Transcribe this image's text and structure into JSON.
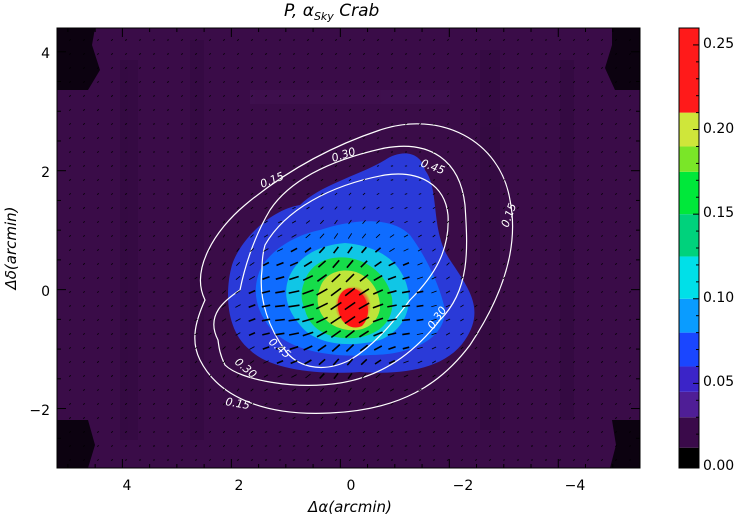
{
  "chart_data": {
    "type": "heatmap",
    "title": "P,  α",
    "title_sub": "Sky",
    "title_tail": " Crab",
    "xlabel": "Δα(arcmin)",
    "ylabel": "Δδ(arcmin)",
    "xlim": [
      5.2,
      -5.5
    ],
    "ylim": [
      -3.0,
      4.4
    ],
    "x_ticks": [
      "4",
      "2",
      "0",
      "−2",
      "−4"
    ],
    "y_ticks": [
      "−2",
      "0",
      "2",
      "4"
    ],
    "colorbar": {
      "range": [
        0.0,
        0.26
      ],
      "ticks": [
        "0.00",
        "0.05",
        "0.10",
        "0.15",
        "0.20",
        "0.25"
      ],
      "colors": [
        "#000000",
        "#3a0a4a",
        "#4f1e96",
        "#3b24c8",
        "#1a46ff",
        "#0a9cff",
        "#00e0e8",
        "#00d27c",
        "#00e83a",
        "#7ae628",
        "#cfe63a",
        "#ff1a1a"
      ]
    },
    "heatmap_peak": {
      "x": 0.1,
      "y": -0.3,
      "value": 0.25
    },
    "contours": [
      {
        "level": 0.15,
        "label": "0.15"
      },
      {
        "level": 0.3,
        "label": "0.30"
      },
      {
        "level": 0.45,
        "label": "0.45"
      }
    ]
  }
}
